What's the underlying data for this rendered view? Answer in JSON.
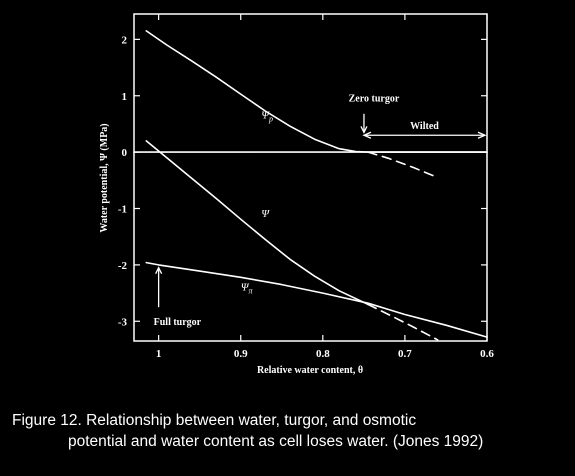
{
  "chart_data": {
    "type": "line",
    "xlabel": "Relative water content, θ",
    "ylabel": "Water potential, Ψ (MPa)",
    "xlim": [
      1.03,
      0.6
    ],
    "ylim": [
      -3.35,
      2.45
    ],
    "x_ticks": [
      "1",
      "0.9",
      "0.8",
      "0.7",
      "0.6"
    ],
    "y_ticks": [
      "2",
      "1",
      "0",
      "-1",
      "-2",
      "-3"
    ],
    "series": [
      {
        "name": "Ψp",
        "style": "solid",
        "x": [
          1.015,
          0.99,
          0.96,
          0.93,
          0.9,
          0.87,
          0.84,
          0.81,
          0.78,
          0.76,
          0.745
        ],
        "y": [
          2.15,
          1.9,
          1.62,
          1.33,
          1.03,
          0.73,
          0.46,
          0.23,
          0.06,
          0.01,
          0.0
        ]
      },
      {
        "name": "Ψp (extrapolated)",
        "style": "dashed",
        "x": [
          0.745,
          0.72,
          0.69,
          0.66
        ],
        "y": [
          0.0,
          -0.11,
          -0.27,
          -0.45
        ]
      },
      {
        "name": "Ψp = 0 (wilted)",
        "style": "solid",
        "x": [
          0.745,
          0.6
        ],
        "y": [
          0.0,
          0.0
        ]
      },
      {
        "name": "Ψ",
        "style": "solid",
        "x": [
          1.015,
          0.99,
          0.96,
          0.93,
          0.9,
          0.87,
          0.84,
          0.81,
          0.78,
          0.745
        ],
        "y": [
          0.2,
          -0.1,
          -0.46,
          -0.82,
          -1.19,
          -1.55,
          -1.9,
          -2.2,
          -2.46,
          -2.7
        ]
      },
      {
        "name": "Ψ (extrapolated)",
        "style": "dashed",
        "x": [
          0.745,
          0.72,
          0.69,
          0.66
        ],
        "y": [
          -2.7,
          -2.88,
          -3.1,
          -3.33
        ]
      },
      {
        "name": "Ψπ",
        "style": "solid",
        "x": [
          1.015,
          1.0,
          0.95,
          0.9,
          0.85,
          0.8,
          0.745,
          0.7,
          0.65,
          0.6
        ],
        "y": [
          -1.96,
          -2.0,
          -2.11,
          -2.22,
          -2.35,
          -2.5,
          -2.68,
          -2.88,
          -3.07,
          -3.28
        ]
      },
      {
        "name": "Zero line",
        "style": "solid",
        "x": [
          1.03,
          0.6
        ],
        "y": [
          0,
          0
        ]
      }
    ],
    "curve_labels": [
      {
        "text": "Ψ",
        "sub": "p",
        "x": 0.875,
        "y": 0.6
      },
      {
        "text": "Ψ",
        "sub": "",
        "x": 0.875,
        "y": -1.15
      },
      {
        "text": "Ψ",
        "sub": "π",
        "x": 0.9,
        "y": -2.45
      }
    ],
    "annotations": {
      "zero_turgor": {
        "text": "Zero turgor",
        "x": 0.745,
        "y_text": 0.9,
        "y_arrow_from": 0.68,
        "y_arrow_to": 0.35
      },
      "wilted": {
        "text": "Wilted",
        "x_from": 0.745,
        "x_to": 0.6,
        "y": 0.3
      },
      "full_turgor": {
        "text": "Full turgor",
        "x": 1.0,
        "y_from": -2.75,
        "y_to": -2.05
      }
    },
    "grid": false
  },
  "caption": {
    "line1": "Figure 12.  Relationship between water, turgor, and osmotic",
    "line2": "potential and water content as cell loses water.  (Jones 1992)"
  },
  "colors": {
    "background": "#000000",
    "foreground": "#ffffff"
  }
}
